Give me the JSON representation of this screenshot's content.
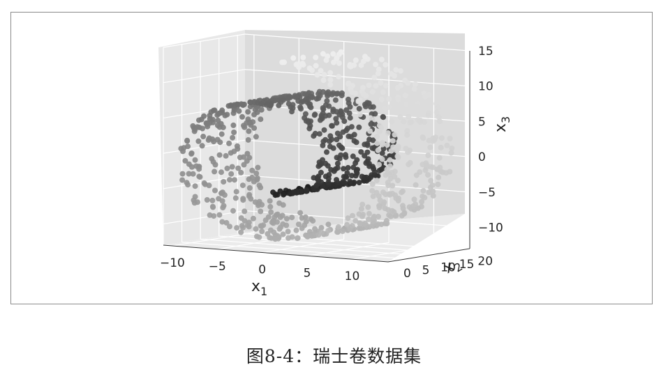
{
  "caption": "图8-4：瑞士卷数据集",
  "chart_data": {
    "type": "scatter",
    "projection": "3d",
    "title": "",
    "xlabel": "x",
    "xlabel_sub": "1",
    "ylabel": "x",
    "ylabel_sub": "2",
    "zlabel": "x",
    "zlabel_sub": "3",
    "xlim": [
      -11,
      14
    ],
    "ylim": [
      0,
      22
    ],
    "zlim": [
      -13,
      15
    ],
    "x_ticks": [
      "−10",
      "−5",
      "0",
      "5",
      "10"
    ],
    "x_tick_values": [
      -10,
      -5,
      0,
      5,
      10
    ],
    "y_ticks": [
      "0",
      "5",
      "10",
      "15",
      "20"
    ],
    "y_tick_values": [
      0,
      5,
      10,
      15,
      20
    ],
    "z_ticks": [
      "−10",
      "−5",
      "0",
      "5",
      "10",
      "15"
    ],
    "z_tick_values": [
      -10,
      -5,
      0,
      5,
      10,
      15
    ],
    "grid": true,
    "colormap": "gray (dark at inner end of roll, light at outer end)",
    "series": [
      {
        "points_description": "Swiss roll: x1 = t·cos t, x3 = t·sin t, t from 4.7 to 14.1; x2 uniform 0–21",
        "t_range": [
          4.7,
          14.1
        ],
        "x2_range": [
          0,
          21
        ],
        "n_points": 1000
      }
    ]
  }
}
